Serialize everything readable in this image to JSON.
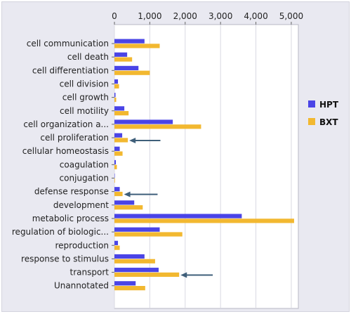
{
  "chart_data": {
    "type": "bar",
    "orientation": "horizontal",
    "title": "",
    "xlabel": "",
    "ylabel": "",
    "xlim": [
      0,
      5200
    ],
    "x_ticks": [
      "0",
      "1,000",
      "2,000",
      "3,000",
      "4,000",
      "5,000"
    ],
    "x_tick_values": [
      0,
      1000,
      2000,
      3000,
      4000,
      5000
    ],
    "grid": true,
    "legend_position": "right",
    "categories": [
      "cell communication",
      "cell death",
      "cell differentiation",
      "cell division",
      "cell growth",
      "cell motility",
      "cell organization a...",
      "cell proliferation",
      "cellular homeostasis",
      "coagulation",
      "conjugation",
      "defense response",
      "development",
      "metabolic process",
      "regulation of biologic...",
      "reproduction",
      "response to stimulus",
      "transport",
      "Unannotated"
    ],
    "series": [
      {
        "name": "HPT",
        "color": "#4a44e6",
        "values": [
          850,
          360,
          680,
          100,
          30,
          280,
          1650,
          220,
          150,
          40,
          10,
          150,
          560,
          3600,
          1280,
          100,
          850,
          1250,
          600
        ]
      },
      {
        "name": "BXT",
        "color": "#f2b830",
        "values": [
          1280,
          500,
          1000,
          130,
          50,
          400,
          2450,
          380,
          230,
          70,
          15,
          230,
          800,
          5080,
          1920,
          150,
          1150,
          1830,
          870
        ]
      }
    ],
    "annotations": [
      {
        "type": "arrow",
        "category": "cell proliferation",
        "from_value": 1300,
        "to_value": 420,
        "color": "#3f5f7a"
      },
      {
        "type": "arrow",
        "category": "defense response",
        "from_value": 1220,
        "to_value": 270,
        "color": "#3f5f7a"
      },
      {
        "type": "arrow",
        "category": "transport",
        "from_value": 2780,
        "to_value": 1870,
        "color": "#3f5f7a"
      }
    ]
  }
}
